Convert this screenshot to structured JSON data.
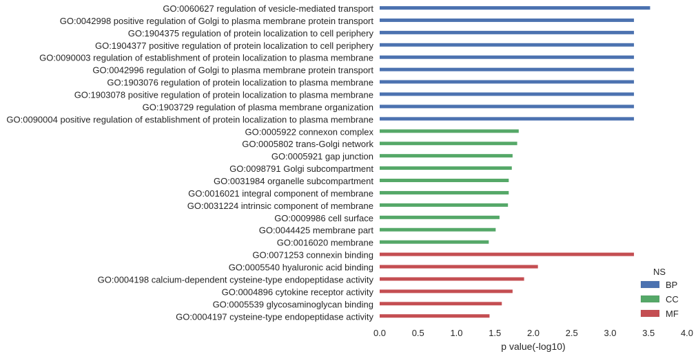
{
  "chart_data": {
    "type": "bar",
    "orientation": "horizontal",
    "xlabel": "p value(-log10)",
    "ylabel": "",
    "xlim": [
      0.0,
      4.0
    ],
    "x_ticks": [
      "0.0",
      "0.5",
      "1.0",
      "1.5",
      "2.0",
      "2.5",
      "3.0",
      "3.5",
      "4.0"
    ],
    "grid": false,
    "legend": {
      "title": "NS",
      "placement": "bottom-right",
      "entries": [
        {
          "name": "BP",
          "color": "#4C72B0"
        },
        {
          "name": "CC",
          "color": "#55A868"
        },
        {
          "name": "MF",
          "color": "#C44E52"
        }
      ]
    },
    "categories": [
      "GO:0060627 regulation of vesicle-mediated transport",
      "GO:0042998 positive regulation of Golgi to plasma membrane protein transport",
      "GO:1904375 regulation of protein localization to cell periphery",
      "GO:1904377 positive regulation of protein localization to cell periphery",
      "GO:0090003 regulation of establishment of protein localization to plasma membrane",
      "GO:0042996 regulation of Golgi to plasma membrane protein transport",
      "GO:1903076 regulation of protein localization to plasma membrane",
      "GO:1903078 positive regulation of protein localization to plasma membrane",
      "GO:1903729 regulation of plasma membrane organization",
      "GO:0090004 positive regulation of establishment of protein localization to plasma membrane",
      "GO:0005922 connexon complex",
      "GO:0005802 trans-Golgi network",
      "GO:0005921 gap junction",
      "GO:0098791 Golgi subcompartment",
      "GO:0031984 organelle subcompartment",
      "GO:0016021 integral component of membrane",
      "GO:0031224 intrinsic component of membrane",
      "GO:0009986 cell surface",
      "GO:0044425 membrane part",
      "GO:0016020 membrane",
      "GO:0071253 connexin binding",
      "GO:0005540 hyaluronic acid binding",
      "GO:0004198 calcium-dependent cysteine-type endopeptidase activity",
      "GO:0004896 cytokine receptor activity",
      "GO:0005539 glycosaminoglycan binding",
      "GO:0004197 cysteine-type endopeptidase activity"
    ],
    "series": [
      {
        "name": "BP",
        "color": "#4C72B0",
        "values": [
          3.52,
          3.31,
          3.31,
          3.31,
          3.31,
          3.31,
          3.31,
          3.31,
          3.31,
          3.31,
          null,
          null,
          null,
          null,
          null,
          null,
          null,
          null,
          null,
          null,
          null,
          null,
          null,
          null,
          null,
          null
        ]
      },
      {
        "name": "CC",
        "color": "#55A868",
        "values": [
          null,
          null,
          null,
          null,
          null,
          null,
          null,
          null,
          null,
          null,
          1.81,
          1.79,
          1.73,
          1.72,
          1.68,
          1.68,
          1.67,
          1.56,
          1.51,
          1.42,
          null,
          null,
          null,
          null,
          null,
          null
        ]
      },
      {
        "name": "MF",
        "color": "#C44E52",
        "values": [
          null,
          null,
          null,
          null,
          null,
          null,
          null,
          null,
          null,
          null,
          null,
          null,
          null,
          null,
          null,
          null,
          null,
          null,
          null,
          null,
          3.31,
          2.06,
          1.88,
          1.73,
          1.59,
          1.43
        ]
      }
    ]
  }
}
